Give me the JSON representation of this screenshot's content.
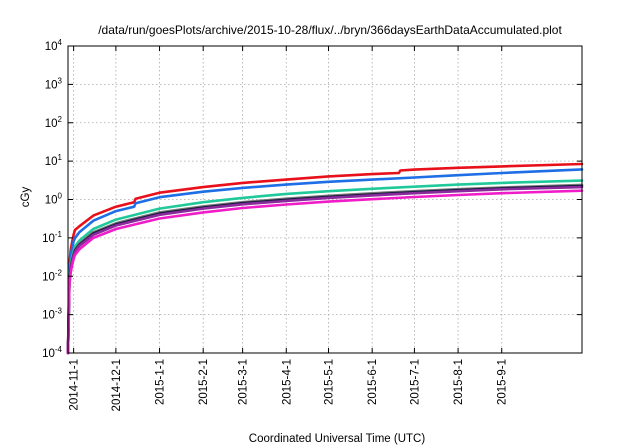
{
  "chart_data": {
    "type": "line",
    "title": "/data/run/goesPlots/archive/2015-10-28/flux/../bryn/366daysEarthDataAccumulated.plot",
    "xlabel": "Coordinated Universal Time (UTC)",
    "ylabel": "cGy",
    "yscale": "log",
    "ylim": [
      0.0001,
      10000
    ],
    "y_ticks": [
      {
        "base": "10",
        "exp": "-4",
        "value": 0.0001
      },
      {
        "base": "10",
        "exp": "-3",
        "value": 0.001
      },
      {
        "base": "10",
        "exp": "-2",
        "value": 0.01
      },
      {
        "base": "10",
        "exp": "-1",
        "value": 0.1
      },
      {
        "base": "10",
        "exp": "0",
        "value": 1
      },
      {
        "base": "10",
        "exp": "1",
        "value": 10
      },
      {
        "base": "10",
        "exp": "2",
        "value": 100
      },
      {
        "base": "10",
        "exp": "3",
        "value": 1000
      },
      {
        "base": "10",
        "exp": "4",
        "value": 10000
      }
    ],
    "xlim": [
      "2014-10-28",
      "2015-10-28"
    ],
    "x_ticks": [
      {
        "label": "2014-11-1",
        "date": "2014-11-01"
      },
      {
        "label": "2014-12-1",
        "date": "2014-12-01"
      },
      {
        "label": "2015-1-1",
        "date": "2015-01-01"
      },
      {
        "label": "2015-2-1",
        "date": "2015-02-01"
      },
      {
        "label": "2015-3-1",
        "date": "2015-03-01"
      },
      {
        "label": "2015-4-1",
        "date": "2015-04-01"
      },
      {
        "label": "2015-5-1",
        "date": "2015-05-01"
      },
      {
        "label": "2015-6-1",
        "date": "2015-06-01"
      },
      {
        "label": "2015-7-1",
        "date": "2015-07-01"
      },
      {
        "label": "2015-8-1",
        "date": "2015-08-01"
      },
      {
        "label": "2015-9-1",
        "date": "2015-09-01"
      }
    ],
    "grid": true,
    "series": [
      {
        "color": "#e8101a",
        "x": [
          "2014-10-28",
          "2014-10-29",
          "2014-10-30",
          "2014-10-31",
          "2014-11-01",
          "2014-11-02",
          "2014-11-05",
          "2014-11-15",
          "2014-12-01",
          "2014-12-14",
          "2014-12-15",
          "2015-01-01",
          "2015-02-01",
          "2015-03-01",
          "2015-04-01",
          "2015-05-01",
          "2015-06-01",
          "2015-06-20",
          "2015-06-21",
          "2015-07-01",
          "2015-08-01",
          "2015-09-01",
          "2015-10-28"
        ],
        "y": [
          0.0001,
          0.02,
          0.05,
          0.08,
          0.12,
          0.16,
          0.2,
          0.38,
          0.65,
          0.85,
          1.05,
          1.5,
          2.1,
          2.7,
          3.3,
          4.0,
          4.6,
          4.9,
          5.7,
          6.0,
          6.7,
          7.3,
          8.4
        ]
      },
      {
        "color": "#1e6ee6",
        "x": [
          "2014-10-28",
          "2014-10-29",
          "2014-10-30",
          "2014-10-31",
          "2014-11-01",
          "2014-11-02",
          "2014-11-05",
          "2014-11-15",
          "2014-12-01",
          "2014-12-14",
          "2014-12-15",
          "2015-01-01",
          "2015-02-01",
          "2015-03-01",
          "2015-04-01",
          "2015-05-01",
          "2015-06-01",
          "2015-07-01",
          "2015-08-01",
          "2015-09-01",
          "2015-10-28"
        ],
        "y": [
          0.0001,
          0.015,
          0.035,
          0.055,
          0.08,
          0.1,
          0.14,
          0.28,
          0.5,
          0.65,
          0.8,
          1.15,
          1.6,
          2.0,
          2.45,
          2.9,
          3.3,
          3.75,
          4.3,
          4.9,
          6.1
        ]
      },
      {
        "color": "#1fc99a",
        "x": [
          "2014-10-28",
          "2014-10-29",
          "2014-10-30",
          "2014-10-31",
          "2014-11-01",
          "2014-11-02",
          "2014-11-05",
          "2014-11-15",
          "2014-12-01",
          "2015-01-01",
          "2015-02-01",
          "2015-03-01",
          "2015-04-01",
          "2015-05-01",
          "2015-06-01",
          "2015-07-01",
          "2015-08-01",
          "2015-09-01",
          "2015-10-28"
        ],
        "y": [
          0.0001,
          0.01,
          0.022,
          0.033,
          0.045,
          0.06,
          0.085,
          0.17,
          0.3,
          0.58,
          0.85,
          1.1,
          1.4,
          1.65,
          1.9,
          2.15,
          2.45,
          2.7,
          3.1
        ]
      },
      {
        "color": "#7a7a7a",
        "x": [
          "2014-10-28",
          "2014-10-29",
          "2014-10-30",
          "2014-10-31",
          "2014-11-01",
          "2014-11-02",
          "2014-11-05",
          "2014-11-15",
          "2014-12-01",
          "2015-01-01",
          "2015-02-01",
          "2015-03-01",
          "2015-04-01",
          "2015-05-01",
          "2015-06-01",
          "2015-07-01",
          "2015-08-01",
          "2015-09-01",
          "2015-10-28"
        ],
        "y": [
          0.0001,
          0.008,
          0.018,
          0.028,
          0.038,
          0.05,
          0.07,
          0.14,
          0.24,
          0.46,
          0.66,
          0.85,
          1.05,
          1.25,
          1.45,
          1.65,
          1.85,
          2.05,
          2.4
        ]
      },
      {
        "color": "#1b1b40",
        "x": [
          "2014-10-28",
          "2014-10-29",
          "2014-10-30",
          "2014-10-31",
          "2014-11-01",
          "2014-11-02",
          "2014-11-05",
          "2014-11-15",
          "2014-12-01",
          "2015-01-01",
          "2015-02-01",
          "2015-03-01",
          "2015-04-01",
          "2015-05-01",
          "2015-06-01",
          "2015-07-01",
          "2015-08-01",
          "2015-09-01",
          "2015-10-28"
        ],
        "y": [
          0.0001,
          0.0075,
          0.017,
          0.026,
          0.036,
          0.047,
          0.066,
          0.13,
          0.225,
          0.43,
          0.62,
          0.8,
          0.98,
          1.17,
          1.36,
          1.55,
          1.75,
          1.95,
          2.25
        ]
      },
      {
        "color": "#8a2a9c",
        "x": [
          "2014-10-28",
          "2014-10-29",
          "2014-10-30",
          "2014-10-31",
          "2014-11-01",
          "2014-11-02",
          "2014-11-05",
          "2014-11-15",
          "2014-12-01",
          "2015-01-01",
          "2015-02-01",
          "2015-03-01",
          "2015-04-01",
          "2015-05-01",
          "2015-06-01",
          "2015-07-01",
          "2015-08-01",
          "2015-09-01",
          "2015-10-28"
        ],
        "y": [
          0.0001,
          0.007,
          0.016,
          0.024,
          0.034,
          0.044,
          0.062,
          0.12,
          0.21,
          0.4,
          0.58,
          0.75,
          0.92,
          1.1,
          1.28,
          1.46,
          1.65,
          1.84,
          2.1
        ]
      },
      {
        "color": "#f01cc8",
        "x": [
          "2014-10-28",
          "2014-10-29",
          "2014-10-30",
          "2014-10-31",
          "2014-11-01",
          "2014-11-02",
          "2014-11-05",
          "2014-11-15",
          "2014-12-01",
          "2015-01-01",
          "2015-02-01",
          "2015-03-01",
          "2015-04-01",
          "2015-05-01",
          "2015-06-01",
          "2015-07-01",
          "2015-08-01",
          "2015-09-01",
          "2015-10-28"
        ],
        "y": [
          0.0001,
          0.006,
          0.013,
          0.02,
          0.028,
          0.036,
          0.05,
          0.1,
          0.17,
          0.32,
          0.46,
          0.6,
          0.74,
          0.88,
          1.02,
          1.16,
          1.31,
          1.46,
          1.7
        ]
      }
    ]
  }
}
